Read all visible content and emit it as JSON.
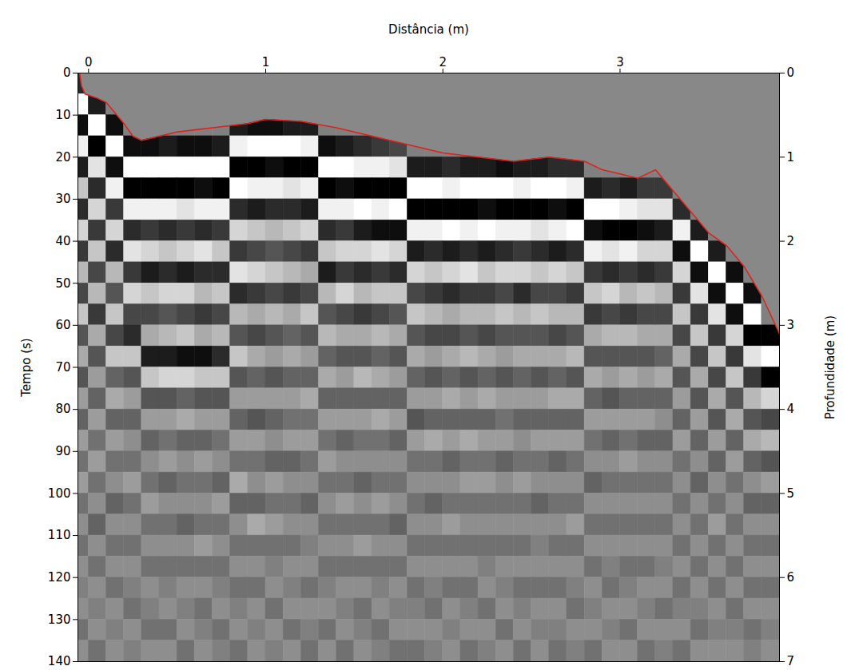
{
  "chart_data": {
    "type": "heatmap",
    "x_label": "Distância (m)",
    "y_label": "Tempo (s)",
    "y2_label": "Profundidade (m)",
    "xlim": [
      -0.06,
      3.9
    ],
    "xticks": [
      0,
      1,
      2,
      3
    ],
    "ylim": [
      0,
      140
    ],
    "yticks": [
      0,
      10,
      20,
      30,
      40,
      50,
      60,
      70,
      80,
      90,
      100,
      110,
      120,
      130,
      140
    ],
    "y2lim": [
      0,
      7
    ],
    "y2ticks": [
      0,
      1,
      2,
      3,
      4,
      5,
      6,
      7
    ],
    "x_edges": [
      -0.1,
      0.0,
      0.1,
      0.2,
      0.3,
      0.4,
      0.5,
      0.6,
      0.7,
      0.8,
      0.9,
      1.0,
      1.1,
      1.2,
      1.3,
      1.4,
      1.5,
      1.6,
      1.7,
      1.8,
      1.9,
      2.0,
      2.1,
      2.2,
      2.3,
      2.4,
      2.5,
      2.6,
      2.7,
      2.8,
      2.9,
      3.0,
      3.1,
      3.2,
      3.3,
      3.4,
      3.5,
      3.6,
      3.7,
      3.8,
      3.9
    ],
    "y_edges": [
      0,
      5,
      10,
      15,
      20,
      25,
      30,
      35,
      40,
      45,
      50,
      55,
      60,
      65,
      70,
      75,
      80,
      85,
      90,
      95,
      100,
      105,
      110,
      115,
      120,
      125,
      130,
      135,
      140
    ],
    "color_range": [
      -9,
      9
    ],
    "cells": [
      [
        -6,
        9,
        -8,
        8,
        -7,
        5,
        -6,
        6,
        -5,
        4,
        -4,
        5,
        -3,
        3,
        -3,
        2,
        -2,
        2,
        -1,
        2,
        -1,
        1,
        -1,
        1,
        0,
        1,
        -1,
        1
      ],
      [
        0,
        -7,
        9,
        -9,
        7,
        -6,
        6,
        -5,
        5,
        -4,
        4,
        -5,
        3,
        -3,
        2,
        -2,
        2,
        -1,
        2,
        -1,
        1,
        -2,
        1,
        -1,
        1,
        0,
        1,
        -1
      ],
      [
        0,
        0,
        -8,
        9,
        -8,
        8,
        -5,
        6,
        -6,
        4,
        -3,
        5,
        -4,
        5,
        -2,
        3,
        -2,
        2,
        -1,
        1,
        -2,
        1,
        -1,
        1,
        -1,
        1,
        0,
        1
      ],
      [
        0,
        0,
        0,
        -8,
        9,
        -9,
        8,
        -6,
        7,
        -5,
        6,
        -4,
        -6,
        5,
        -3,
        2,
        -2,
        1,
        -1,
        2,
        -1,
        1,
        -1,
        1,
        0,
        -1,
        1,
        0
      ],
      [
        0,
        0,
        0,
        -8,
        9,
        -9,
        8,
        -5,
        6,
        -7,
        5,
        -4,
        3,
        -7,
        5,
        -3,
        2,
        -2,
        1,
        -1,
        2,
        -1,
        1,
        -1,
        1,
        0,
        -1,
        1
      ],
      [
        0,
        0,
        0,
        -7,
        9,
        -9,
        8,
        -6,
        5,
        -6,
        6,
        -3,
        4,
        -7,
        6,
        -3,
        2,
        -1,
        2,
        -2,
        1,
        -1,
        1,
        -1,
        0,
        1,
        -1,
        1
      ],
      [
        0,
        0,
        0,
        -8,
        9,
        -9,
        7,
        -5,
        6,
        -7,
        6,
        -4,
        5,
        -8,
        6,
        -2,
        3,
        -2,
        1,
        -1,
        1,
        -2,
        1,
        -1,
        1,
        0,
        1,
        -1
      ],
      [
        0,
        0,
        0,
        -8,
        9,
        -8,
        8,
        -6,
        7,
        -6,
        4,
        -5,
        3,
        -8,
        5,
        -3,
        2,
        -2,
        2,
        -1,
        1,
        -1,
        2,
        -1,
        1,
        -1,
        0,
        1
      ],
      [
        0,
        0,
        0,
        -7,
        9,
        -9,
        8,
        -5,
        5,
        -6,
        5,
        -4,
        4,
        -6,
        5,
        -3,
        2,
        -1,
        1,
        -2,
        2,
        -1,
        1,
        -1,
        0,
        1,
        -1,
        0
      ],
      [
        0,
        0,
        -7,
        8,
        -9,
        9,
        -6,
        6,
        -5,
        7,
        -6,
        4,
        -3,
        5,
        -3,
        2,
        -2,
        2,
        -1,
        3,
        -2,
        1,
        -1,
        1,
        -1,
        0,
        1,
        -1
      ],
      [
        0,
        0,
        -8,
        9,
        -9,
        8,
        -7,
        5,
        -4,
        6,
        -5,
        3,
        -4,
        3,
        -2,
        2,
        -3,
        2,
        -1,
        1,
        -2,
        3,
        -1,
        1,
        -1,
        1,
        0,
        1
      ],
      [
        0,
        0,
        -8,
        9,
        -8,
        8,
        -6,
        4,
        -3,
        5,
        -4,
        4,
        -3,
        2,
        -3,
        2,
        -2,
        1,
        -2,
        2,
        -1,
        2,
        -1,
        0,
        1,
        -1,
        1,
        0
      ],
      [
        0,
        0,
        -7,
        9,
        -9,
        7,
        -6,
        5,
        -4,
        4,
        -5,
        3,
        -2,
        3,
        -2,
        2,
        -1,
        2,
        -2,
        1,
        -1,
        1,
        -1,
        1,
        0,
        1,
        -1,
        1
      ],
      [
        0,
        0,
        -7,
        8,
        -9,
        8,
        -7,
        6,
        -5,
        3,
        -4,
        5,
        -3,
        2,
        -2,
        3,
        -1,
        2,
        -1,
        1,
        -2,
        1,
        0,
        1,
        -1,
        1,
        0,
        -1
      ],
      [
        0,
        0,
        0,
        -8,
        9,
        -9,
        8,
        -6,
        5,
        -7,
        4,
        -3,
        4,
        -2,
        3,
        -2,
        2,
        -1,
        2,
        -1,
        1,
        -1,
        1,
        -1,
        0,
        1,
        -1,
        1
      ],
      [
        0,
        0,
        0,
        -7,
        9,
        -8,
        8,
        -5,
        6,
        -5,
        6,
        -4,
        3,
        -3,
        2,
        -2,
        2,
        -2,
        1,
        -1,
        2,
        -1,
        1,
        -1,
        1,
        0,
        1,
        -1
      ],
      [
        0,
        0,
        0,
        -6,
        8,
        -9,
        9,
        -7,
        6,
        -6,
        4,
        -5,
        3,
        -3,
        4,
        -2,
        2,
        -1,
        1,
        -2,
        1,
        -1,
        2,
        -1,
        1,
        -1,
        0,
        1
      ],
      [
        0,
        0,
        0,
        -5,
        8,
        -9,
        8,
        -8,
        7,
        -5,
        5,
        -4,
        4,
        -2,
        3,
        -2,
        3,
        -1,
        1,
        -1,
        2,
        -1,
        1,
        -1,
        0,
        1,
        -1,
        0
      ],
      [
        0,
        0,
        0,
        -4,
        7,
        -9,
        9,
        -8,
        6,
        -6,
        5,
        -3,
        3,
        -3,
        2,
        -2,
        2,
        -2,
        1,
        -1,
        1,
        -2,
        1,
        -1,
        1,
        0,
        1,
        -1
      ],
      [
        0,
        0,
        0,
        0,
        -7,
        9,
        -9,
        8,
        -7,
        6,
        -4,
        5,
        -3,
        3,
        -2,
        2,
        -3,
        2,
        -1,
        1,
        -1,
        1,
        -1,
        1,
        -1,
        0,
        1,
        -1
      ],
      [
        0,
        0,
        0,
        0,
        -7,
        9,
        -9,
        8,
        -6,
        5,
        -5,
        4,
        -4,
        2,
        -3,
        2,
        -2,
        3,
        -1,
        1,
        -2,
        1,
        -1,
        1,
        0,
        -1,
        1,
        0
      ],
      [
        0,
        0,
        0,
        0,
        -6,
        8,
        -9,
        9,
        -7,
        6,
        -6,
        3,
        -4,
        3,
        -2,
        3,
        -2,
        2,
        -2,
        1,
        -1,
        2,
        -1,
        1,
        -1,
        1,
        0,
        1
      ],
      [
        0,
        0,
        0,
        0,
        -7,
        9,
        -9,
        8,
        -6,
        7,
        -5,
        4,
        -3,
        4,
        -3,
        2,
        -2,
        3,
        -1,
        2,
        -1,
        1,
        -1,
        1,
        -1,
        0,
        1,
        -1
      ],
      [
        0,
        0,
        0,
        0,
        -7,
        9,
        -8,
        9,
        -7,
        5,
        -5,
        4,
        -4,
        3,
        -2,
        3,
        -2,
        2,
        -1,
        2,
        -1,
        1,
        -1,
        0,
        1,
        -1,
        1,
        0
      ],
      [
        0,
        0,
        0,
        0,
        -8,
        9,
        -9,
        8,
        -6,
        6,
        -4,
        5,
        -3,
        2,
        -3,
        2,
        -1,
        2,
        -2,
        1,
        -1,
        1,
        -1,
        1,
        0,
        1,
        -1,
        1
      ],
      [
        0,
        0,
        0,
        0,
        -7,
        8,
        -9,
        8,
        -5,
        6,
        -6,
        4,
        -3,
        3,
        -2,
        2,
        -2,
        1,
        -1,
        2,
        -1,
        1,
        -1,
        1,
        -1,
        0,
        1,
        -1
      ],
      [
        0,
        0,
        0,
        0,
        -7,
        9,
        -9,
        7,
        -6,
        5,
        -4,
        5,
        -3,
        3,
        -3,
        2,
        -2,
        2,
        -1,
        1,
        -2,
        1,
        0,
        1,
        -1,
        1,
        0,
        1
      ],
      [
        0,
        0,
        0,
        0,
        -6,
        9,
        -8,
        8,
        -7,
        6,
        -4,
        4,
        -4,
        3,
        -2,
        3,
        -2,
        2,
        -2,
        1,
        -1,
        1,
        -1,
        1,
        -1,
        1,
        0,
        -1
      ],
      [
        0,
        0,
        0,
        0,
        -6,
        8,
        -9,
        9,
        -6,
        5,
        -5,
        4,
        -3,
        4,
        -3,
        3,
        -2,
        2,
        -1,
        1,
        -1,
        2,
        -1,
        1,
        0,
        -1,
        1,
        0
      ],
      [
        0,
        0,
        0,
        0,
        0,
        -7,
        9,
        -8,
        8,
        -5,
        5,
        -5,
        3,
        -3,
        3,
        -2,
        2,
        -1,
        1,
        -2,
        1,
        -1,
        1,
        -1,
        1,
        0,
        1,
        -1
      ],
      [
        0,
        0,
        0,
        0,
        0,
        -6,
        9,
        -9,
        7,
        -6,
        6,
        -4,
        4,
        -3,
        2,
        -3,
        2,
        -2,
        1,
        -1,
        1,
        -1,
        1,
        0,
        -1,
        1,
        0,
        1
      ],
      [
        0,
        0,
        0,
        0,
        0,
        -7,
        8,
        -9,
        8,
        -5,
        4,
        -5,
        4,
        -3,
        3,
        -2,
        2,
        -1,
        2,
        -1,
        1,
        -1,
        1,
        -1,
        0,
        1,
        -1,
        1
      ],
      [
        0,
        0,
        0,
        0,
        0,
        -5,
        7,
        -8,
        6,
        -6,
        5,
        -4,
        3,
        -3,
        2,
        -2,
        2,
        -2,
        1,
        -1,
        1,
        -1,
        1,
        -1,
        1,
        0,
        1,
        -1
      ],
      [
        0,
        0,
        0,
        0,
        0,
        -5,
        7,
        -7,
        6,
        -5,
        4,
        -4,
        3,
        -2,
        3,
        -2,
        1,
        -2,
        1,
        -1,
        1,
        -1,
        1,
        0,
        1,
        -1,
        1,
        0
      ],
      [
        0,
        0,
        0,
        0,
        0,
        0,
        -6,
        8,
        -8,
        6,
        -5,
        5,
        -4,
        3,
        -3,
        2,
        -2,
        2,
        -1,
        1,
        -1,
        1,
        -1,
        1,
        -1,
        0,
        1,
        -1
      ],
      [
        0,
        0,
        0,
        0,
        0,
        0,
        0,
        -7,
        9,
        -8,
        7,
        -5,
        5,
        -4,
        3,
        -3,
        2,
        -2,
        1,
        -2,
        1,
        -1,
        1,
        -1,
        1,
        0,
        -1,
        1
      ],
      [
        0,
        0,
        0,
        0,
        0,
        0,
        0,
        0,
        -7,
        9,
        -8,
        7,
        -5,
        5,
        -4,
        3,
        -3,
        2,
        -2,
        1,
        -1,
        2,
        -1,
        1,
        -1,
        1,
        0,
        1
      ],
      [
        0,
        0,
        0,
        0,
        0,
        0,
        0,
        0,
        0,
        -8,
        9,
        -8,
        6,
        -5,
        5,
        -3,
        3,
        -2,
        2,
        -1,
        1,
        -1,
        1,
        -1,
        1,
        -1,
        0,
        1
      ],
      [
        0,
        0,
        0,
        0,
        0,
        0,
        0,
        0,
        0,
        0,
        -8,
        9,
        -9,
        7,
        -5,
        4,
        -3,
        3,
        -2,
        1,
        -2,
        1,
        -1,
        1,
        -1,
        1,
        -1,
        0
      ],
      [
        0,
        0,
        0,
        0,
        0,
        0,
        0,
        0,
        0,
        0,
        0,
        0,
        -9,
        9,
        -9,
        6,
        -4,
        4,
        -3,
        2,
        -2,
        1,
        -1,
        1,
        -1,
        1,
        0,
        1
      ]
    ],
    "line": {
      "color": "#e0201b",
      "x": [
        -0.05,
        -0.04,
        -0.02,
        0.05,
        0.1,
        0.2,
        0.25,
        0.3,
        0.4,
        0.5,
        0.7,
        0.9,
        1.0,
        1.2,
        1.4,
        1.6,
        1.8,
        2.0,
        2.2,
        2.4,
        2.6,
        2.8,
        2.9,
        3.0,
        3.1,
        3.2,
        3.3,
        3.4,
        3.5,
        3.6,
        3.7,
        3.8,
        3.9
      ],
      "y": [
        0,
        3,
        5,
        6,
        7,
        12,
        15,
        16,
        15,
        14,
        13,
        12,
        11,
        11.5,
        13,
        15,
        17,
        19,
        20,
        21,
        20,
        21,
        23,
        24,
        25,
        23,
        28,
        33,
        38,
        41,
        46,
        53,
        62
      ]
    }
  }
}
